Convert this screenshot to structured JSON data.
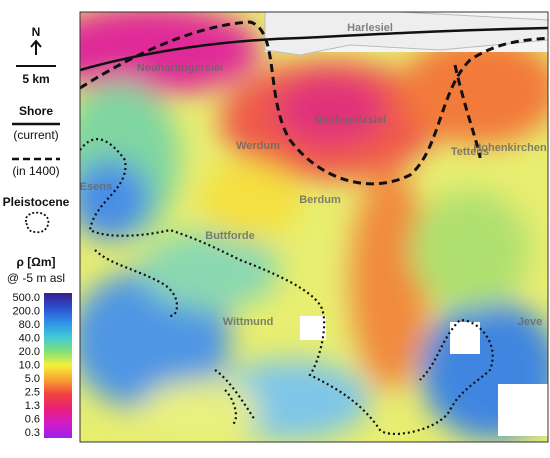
{
  "legend": {
    "north": "N",
    "scale": "5 km",
    "shore": "Shore",
    "current": "(current)",
    "historic": "(in 1400)",
    "pleistocene": "Pleistocene",
    "rho": "ρ [Ωm]",
    "depth": "@ -5 m asl",
    "colorbar": [
      "500.0",
      "200.0",
      "80.0",
      "40.0",
      "20.0",
      "10.0",
      "5.0",
      "2.5",
      "1.3",
      "0.6",
      "0.3"
    ]
  },
  "map": {
    "labels": [
      "Harlesiel",
      "Neuharlingersiel",
      "Neufunnixsiel",
      "Werdum",
      "Esens",
      "Berdum",
      "Buttforde",
      "Wittmund",
      "Hohenkirchen",
      "Tettens",
      "Jeve"
    ]
  }
}
